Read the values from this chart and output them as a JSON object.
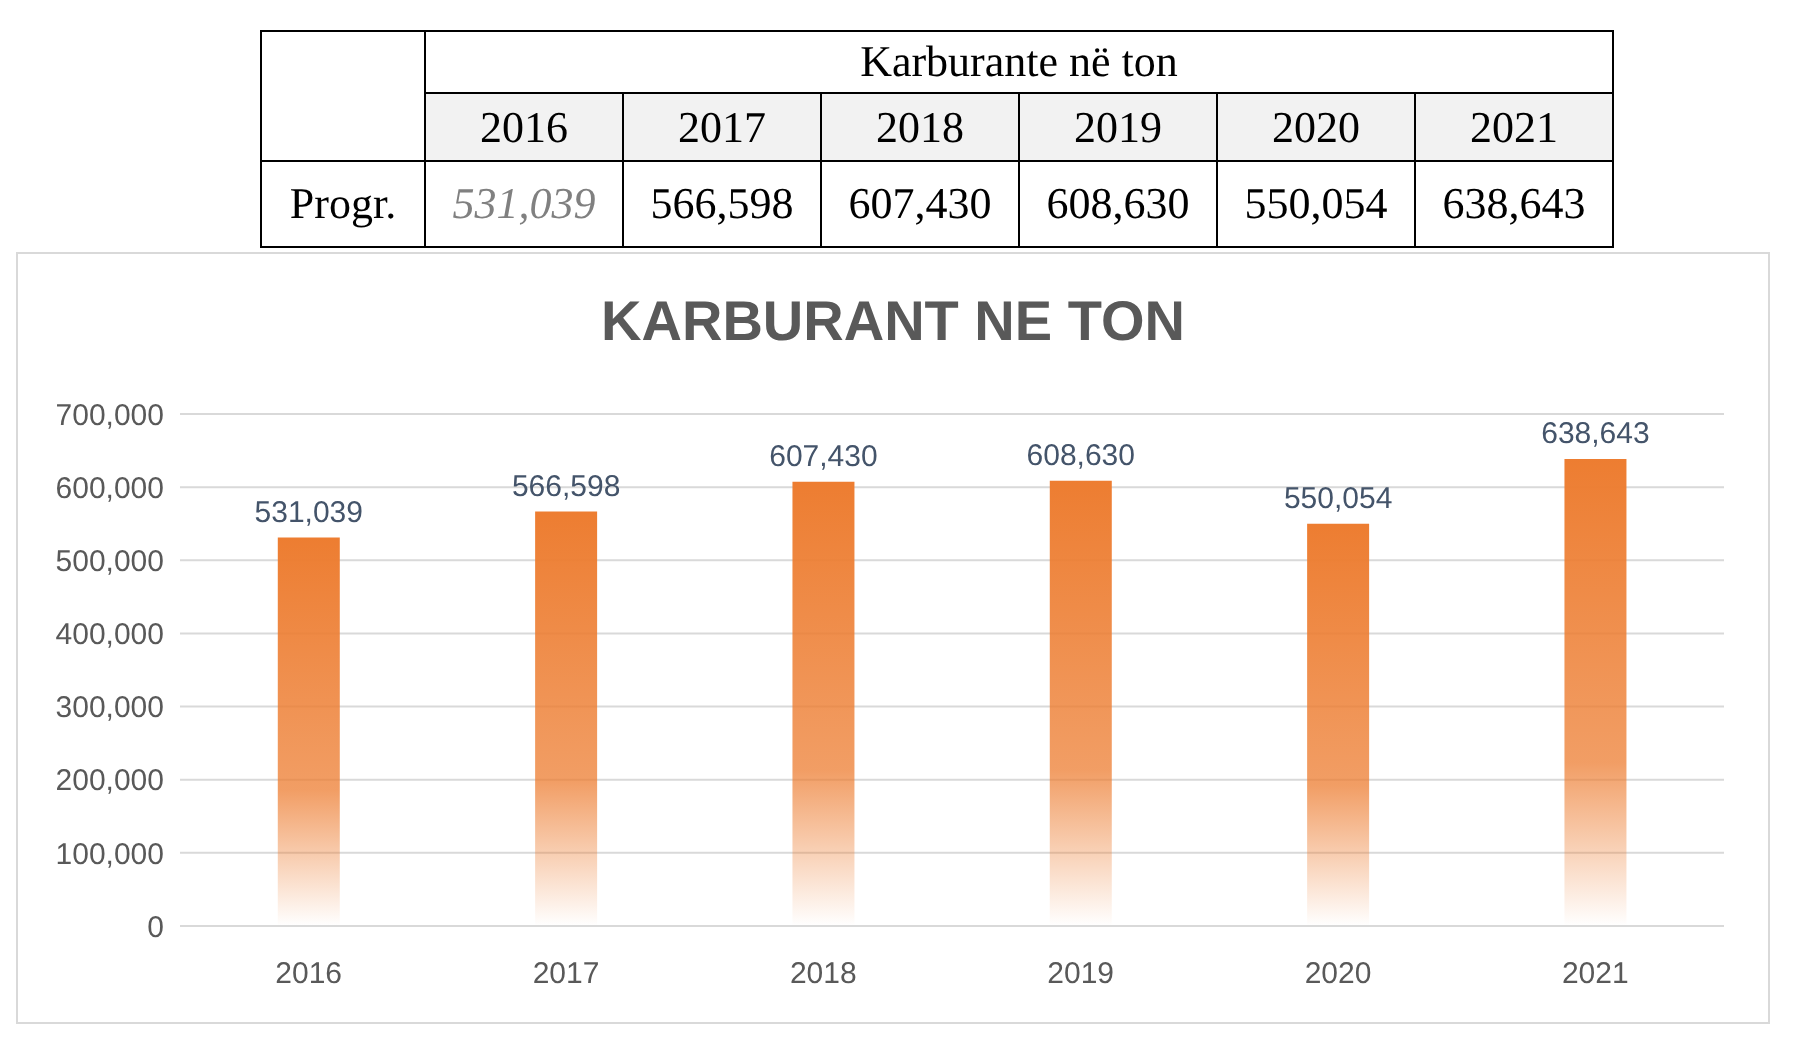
{
  "chart_data": {
    "type": "bar",
    "title": "KARBURANT NE TON",
    "categories": [
      "2016",
      "2017",
      "2018",
      "2019",
      "2020",
      "2021"
    ],
    "values": [
      531039,
      566598,
      607430,
      608630,
      550054,
      638643
    ],
    "value_labels": [
      "531,039",
      "566,598",
      "607,430",
      "608,630",
      "550,054",
      "638,643"
    ],
    "color": "#ed7d31",
    "ylim": [
      0,
      700000
    ],
    "yticks": [
      0,
      {
        "value": 100000,
        "label": "100,000"
      },
      {
        "value": 200000,
        "label": "200,000"
      },
      {
        "value": 300000,
        "label": "300,000"
      },
      {
        "value": 400000,
        "label": "400,000"
      },
      {
        "value": 500000,
        "label": "500,000"
      },
      {
        "value": 600000,
        "label": "600,000"
      },
      {
        "value": 700000,
        "label": "700,000"
      }
    ],
    "grid": "y",
    "annotations": [
      "Karburante në ton",
      "Progr."
    ]
  }
}
